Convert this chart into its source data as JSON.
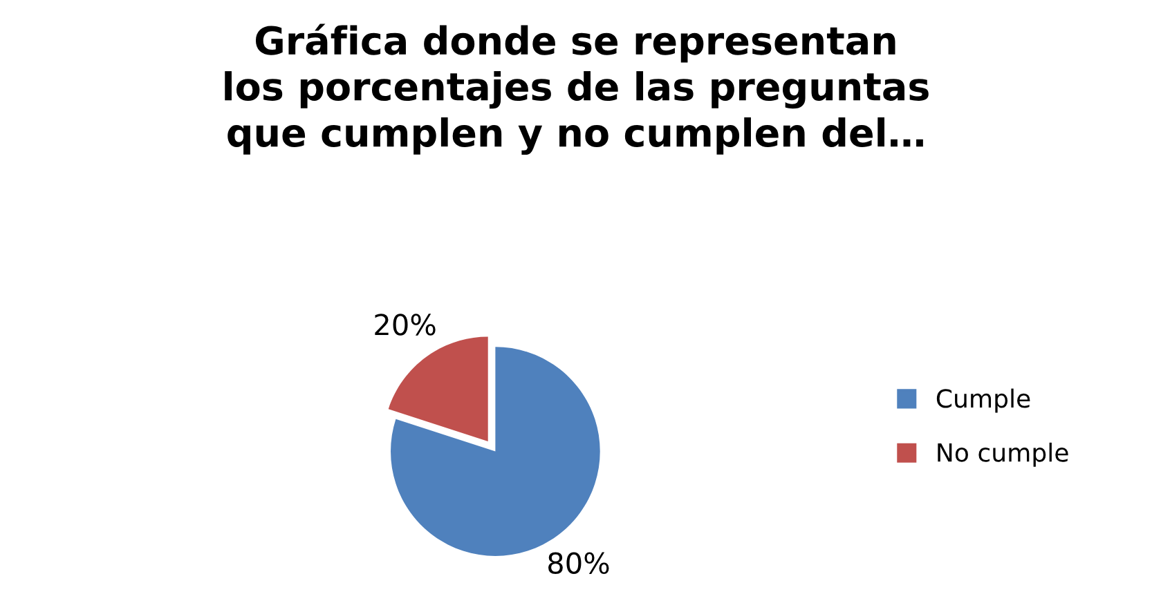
{
  "chart_data": {
    "type": "pie",
    "title": "Gráfica donde se representan\nlos porcentajes de las preguntas\nque cumplen y no cumplen del…",
    "categories": [
      "Cumple",
      "No cumple"
    ],
    "values": [
      80,
      20
    ],
    "value_labels": [
      "80%",
      "20%"
    ],
    "colors": [
      "#4f81bd",
      "#c0504d"
    ],
    "legend": "right"
  }
}
